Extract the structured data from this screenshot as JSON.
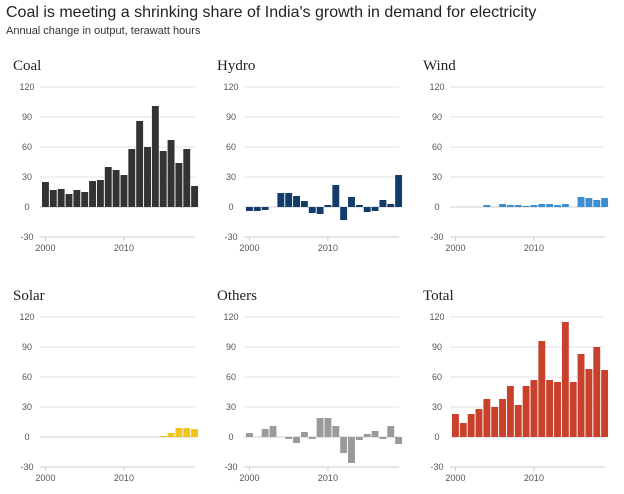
{
  "header": {
    "title": "Coal is meeting a shrinking share of India's growth in demand for electricity",
    "subtitle": "Annual change in output, terawatt hours"
  },
  "chart_data": [
    {
      "type": "bar",
      "title": "Coal",
      "color": "#333333",
      "x": [
        2000,
        2001,
        2002,
        2003,
        2004,
        2005,
        2006,
        2007,
        2008,
        2009,
        2010,
        2011,
        2012,
        2013,
        2014,
        2015,
        2016,
        2017,
        2018,
        2019
      ],
      "values": [
        25,
        17,
        18,
        13,
        17,
        15,
        26,
        27,
        40,
        37,
        32,
        58,
        86,
        60,
        101,
        56,
        67,
        44,
        58,
        21
      ],
      "ylim": [
        -30,
        120
      ],
      "yticks": [
        120,
        90,
        60,
        30,
        0,
        -30
      ],
      "xticks": [
        2000,
        2010
      ],
      "xtick_labels": [
        "2000",
        "2010"
      ],
      "ytick_labels": [
        "120",
        "90",
        "60",
        "30",
        "0",
        "-30"
      ]
    },
    {
      "type": "bar",
      "title": "Hydro",
      "color": "#123c69",
      "x": [
        2000,
        2001,
        2002,
        2003,
        2004,
        2005,
        2006,
        2007,
        2008,
        2009,
        2010,
        2011,
        2012,
        2013,
        2014,
        2015,
        2016,
        2017,
        2018,
        2019
      ],
      "values": [
        -4,
        -4,
        -3,
        0,
        14,
        14,
        11,
        6,
        -6,
        -7,
        2,
        22,
        -13,
        10,
        2,
        -5,
        -4,
        7,
        3,
        32
      ],
      "ylim": [
        -30,
        120
      ],
      "yticks": [
        120,
        90,
        60,
        30,
        0,
        -30
      ],
      "xticks": [
        2000,
        2010
      ],
      "xtick_labels": [
        "2000",
        "2010"
      ],
      "ytick_labels": [
        "120",
        "90",
        "60",
        "30",
        "0",
        "-30"
      ]
    },
    {
      "type": "bar",
      "title": "Wind",
      "color": "#3b8fd0",
      "x": [
        2004,
        2005,
        2006,
        2007,
        2008,
        2009,
        2010,
        2011,
        2012,
        2013,
        2014,
        2015,
        2016,
        2017,
        2018,
        2019
      ],
      "values": [
        2,
        0,
        3,
        2,
        2,
        1,
        2,
        3,
        3,
        2,
        3,
        0,
        10,
        9,
        7,
        9
      ],
      "ylim": [
        -30,
        120
      ],
      "yticks": [
        120,
        90,
        60,
        30,
        0,
        -30
      ],
      "xticks": [
        2000,
        2010
      ],
      "xtick_labels": [
        "2000",
        "2010"
      ],
      "ytick_labels": [
        "120",
        "90",
        "60",
        "30",
        "0",
        "-30"
      ]
    },
    {
      "type": "bar",
      "title": "Solar",
      "color": "#f0c419",
      "x": [
        2015,
        2016,
        2017,
        2018,
        2019
      ],
      "values": [
        1,
        4,
        9,
        9,
        8
      ],
      "ylim": [
        -30,
        120
      ],
      "yticks": [
        120,
        90,
        60,
        30,
        0,
        -30
      ],
      "xticks": [
        2000,
        2010
      ],
      "xtick_labels": [
        "2000",
        "2010"
      ],
      "ytick_labels": [
        "120",
        "90",
        "60",
        "30",
        "0",
        "-30"
      ]
    },
    {
      "type": "bar",
      "title": "Others",
      "color": "#9a9a9a",
      "x": [
        2000,
        2001,
        2002,
        2003,
        2004,
        2005,
        2006,
        2007,
        2008,
        2009,
        2010,
        2011,
        2012,
        2013,
        2014,
        2015,
        2016,
        2017,
        2018,
        2019
      ],
      "values": [
        4,
        0,
        8,
        11,
        0,
        -2,
        -6,
        5,
        -2,
        19,
        19,
        11,
        -16,
        -26,
        -3,
        3,
        6,
        -2,
        11,
        -7
      ],
      "ylim": [
        -30,
        120
      ],
      "yticks": [
        120,
        90,
        60,
        30,
        0,
        -30
      ],
      "xticks": [
        2000,
        2010
      ],
      "xtick_labels": [
        "2000",
        "2010"
      ],
      "ytick_labels": [
        "120",
        "90",
        "60",
        "30",
        "0",
        "-30"
      ]
    },
    {
      "type": "bar",
      "title": "Total",
      "color": "#c9412b",
      "x": [
        2000,
        2001,
        2002,
        2003,
        2004,
        2005,
        2006,
        2007,
        2008,
        2009,
        2010,
        2011,
        2012,
        2013,
        2014,
        2015,
        2016,
        2017,
        2018,
        2019
      ],
      "values": [
        23,
        14,
        23,
        28,
        38,
        30,
        38,
        51,
        32,
        51,
        57,
        96,
        57,
        55,
        115,
        55,
        83,
        68,
        90,
        67
      ],
      "ylim": [
        -30,
        120
      ],
      "yticks": [
        120,
        90,
        60,
        30,
        0,
        -30
      ],
      "xticks": [
        2000,
        2010
      ],
      "xtick_labels": [
        "2000",
        "2010"
      ],
      "ytick_labels": [
        "120",
        "90",
        "60",
        "30",
        "0",
        "-30"
      ]
    }
  ]
}
